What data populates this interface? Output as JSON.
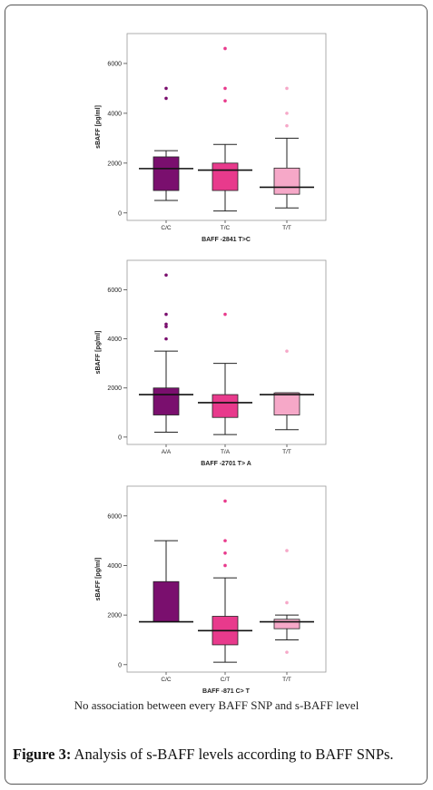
{
  "note": "No association between every BAFF SNP and s-BAFF level",
  "caption": {
    "label": "Figure 3:",
    "text": " Analysis of s-BAFF levels according to BAFF SNPs."
  },
  "chart_data": [
    {
      "type": "box",
      "xlabel": "BAFF  -2841  T>C",
      "ylabel": "sBAFF [pg/ml]",
      "ylim": [
        -300,
        7200
      ],
      "yticks": [
        0,
        2000,
        4000,
        6000
      ],
      "categories": [
        "C/C",
        "T/C",
        "T/T"
      ],
      "colors": [
        "#7a0f6e",
        "#e83a8c",
        "#f6a8c8"
      ],
      "boxes": [
        {
          "category": "C/C",
          "whisker_low": 500,
          "q1": 900,
          "median": 1780,
          "q3": 2250,
          "whisker_high": 2500,
          "outliers": [
            4600,
            5000
          ]
        },
        {
          "category": "T/C",
          "whisker_low": 80,
          "q1": 900,
          "median": 1720,
          "q3": 2000,
          "whisker_high": 2750,
          "outliers": [
            4500,
            5000,
            6600
          ]
        },
        {
          "category": "T/T",
          "whisker_low": 200,
          "q1": 750,
          "median": 1030,
          "q3": 1800,
          "whisker_high": 3000,
          "outliers": [
            3500,
            4000,
            5000
          ]
        }
      ]
    },
    {
      "type": "box",
      "xlabel": "BAFF  -2701  T> A",
      "ylabel": "sBAFF [pg/ml]",
      "ylim": [
        -300,
        7200
      ],
      "yticks": [
        0,
        2000,
        4000,
        6000
      ],
      "categories": [
        "A/A",
        "T/A",
        "T/T"
      ],
      "colors": [
        "#7a0f6e",
        "#e83a8c",
        "#f6a8c8"
      ],
      "boxes": [
        {
          "category": "A/A",
          "whisker_low": 200,
          "q1": 900,
          "median": 1730,
          "q3": 2000,
          "whisker_high": 3500,
          "outliers": [
            4000,
            4500,
            4600,
            5000,
            6600
          ]
        },
        {
          "category": "T/A",
          "whisker_low": 100,
          "q1": 800,
          "median": 1400,
          "q3": 1730,
          "whisker_high": 3000,
          "outliers": [
            5000
          ]
        },
        {
          "category": "T/T",
          "whisker_low": 300,
          "q1": 900,
          "median": 1730,
          "q3": 1800,
          "whisker_high": 1800,
          "outliers": [
            3500
          ]
        }
      ]
    },
    {
      "type": "box",
      "xlabel": "BAFF  -871  C> T",
      "ylabel": "sBAFF [pg/ml]",
      "ylim": [
        -300,
        7200
      ],
      "yticks": [
        0,
        2000,
        4000,
        6000
      ],
      "categories": [
        "C/C",
        "C/T",
        "T/T"
      ],
      "colors": [
        "#7a0f6e",
        "#e83a8c",
        "#f6a8c8"
      ],
      "boxes": [
        {
          "category": "C/C",
          "whisker_low": 1730,
          "q1": 1730,
          "median": 1730,
          "q3": 3350,
          "whisker_high": 5000,
          "outliers": []
        },
        {
          "category": "C/T",
          "whisker_low": 100,
          "q1": 800,
          "median": 1370,
          "q3": 1950,
          "whisker_high": 3500,
          "outliers": [
            4000,
            4500,
            5000,
            6600
          ]
        },
        {
          "category": "T/T",
          "whisker_low": 1000,
          "q1": 1450,
          "median": 1730,
          "q3": 1830,
          "whisker_high": 2000,
          "outliers": [
            500,
            2500,
            4600
          ]
        }
      ]
    }
  ]
}
